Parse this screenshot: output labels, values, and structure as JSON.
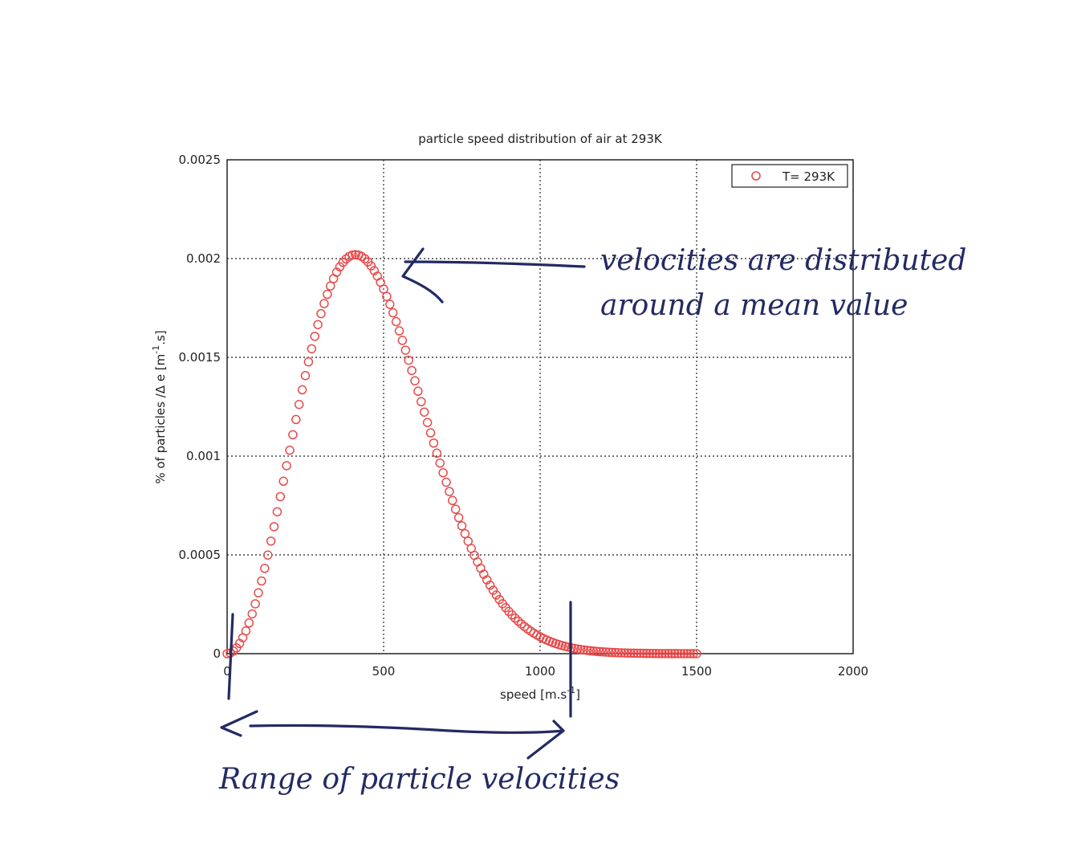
{
  "chart_data": {
    "type": "scatter",
    "title": "particle speed distribution of air at 293K",
    "xlabel": "speed [m.s",
    "xlabel_sup": "-1",
    "xlabel_end": "]",
    "ylabel": "% of particles /Δ e [m",
    "ylabel_sup": "-1",
    "ylabel_end": ".s]",
    "xlim": [
      0,
      2000
    ],
    "ylim": [
      0,
      0.0025
    ],
    "xticks": [
      "0",
      "500",
      "1000",
      "1500",
      "2000"
    ],
    "xtick_values": [
      0,
      500,
      1000,
      1500,
      2000
    ],
    "yticks": [
      "0",
      "0.0005",
      "0.001",
      "0.0015",
      "0.002",
      "0.0025"
    ],
    "ytick_values": [
      0,
      0.0005,
      0.001,
      0.0015,
      0.002,
      0.0025
    ],
    "grid": true,
    "legend_position": "top-right",
    "series": [
      {
        "name": "T= 293K",
        "color": "#e84a4a",
        "marker": "circle-open",
        "x_start": 0,
        "x_end": 1500,
        "x_step": 10,
        "peak_x": 410,
        "peak_y": 0.00202
      }
    ]
  },
  "annotations": {
    "mean_note_line1": "velocities are distributed",
    "mean_note_line2": "around a mean value",
    "range_note": "Range of particle velocities",
    "ink_color": "#232a63"
  }
}
